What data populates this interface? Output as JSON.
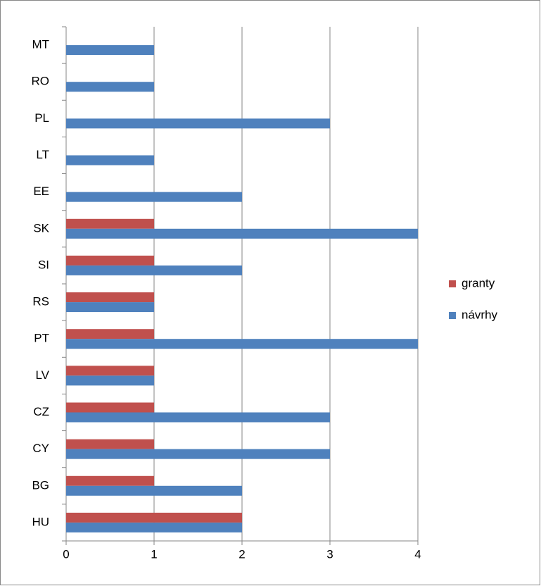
{
  "chart_data": {
    "type": "bar",
    "orientation": "horizontal",
    "categories": [
      "HU",
      "BG",
      "CY",
      "CZ",
      "LV",
      "PT",
      "RS",
      "SI",
      "SK",
      "EE",
      "LT",
      "PL",
      "RO",
      "MT"
    ],
    "series": [
      {
        "name": "granty",
        "color": "#c0504d",
        "values": [
          2,
          1,
          1,
          1,
          1,
          1,
          1,
          1,
          1,
          0,
          0,
          0,
          0,
          0
        ]
      },
      {
        "name": "návrhy",
        "color": "#4f81bd",
        "values": [
          2,
          2,
          3,
          3,
          1,
          4,
          1,
          2,
          4,
          2,
          1,
          3,
          1,
          1
        ]
      }
    ],
    "xlim": [
      0,
      4
    ],
    "xticks": [
      0,
      1,
      2,
      3,
      4
    ],
    "grid": true,
    "legend": "right"
  }
}
